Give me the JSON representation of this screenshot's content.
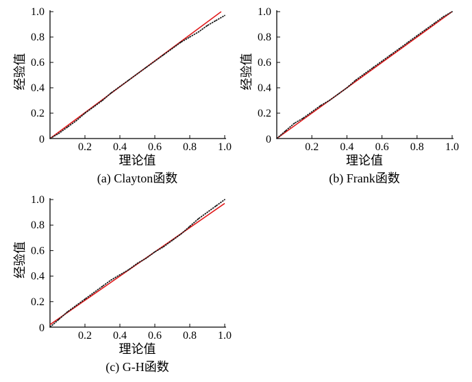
{
  "chart_data": [
    {
      "type": "scatter",
      "caption": "(a) Clayton函数",
      "xlabel": "理论值",
      "ylabel": "经验值",
      "xlim": [
        0,
        1.0
      ],
      "ylim": [
        0,
        1.0
      ],
      "x_tick_labels": [
        "0.2",
        "0.4",
        "0.6",
        "0.8",
        "1.0"
      ],
      "y_tick_labels": [
        "0",
        "0.2",
        "0.4",
        "0.6",
        "0.8",
        "1.0"
      ],
      "reference_line": {
        "color": "#e0191a",
        "x": [
          0,
          0.98
        ],
        "y": [
          0,
          1.0
        ]
      },
      "series": [
        {
          "color": "#1a1a1a",
          "x": [
            0,
            0.05,
            0.1,
            0.15,
            0.2,
            0.25,
            0.3,
            0.35,
            0.4,
            0.45,
            0.5,
            0.55,
            0.6,
            0.65,
            0.7,
            0.75,
            0.8,
            0.85,
            0.9,
            0.95,
            1.0
          ],
          "y": [
            0,
            0.04,
            0.09,
            0.14,
            0.2,
            0.25,
            0.3,
            0.36,
            0.41,
            0.46,
            0.51,
            0.56,
            0.61,
            0.66,
            0.71,
            0.76,
            0.8,
            0.84,
            0.89,
            0.93,
            0.97
          ]
        }
      ]
    },
    {
      "type": "scatter",
      "caption": "(b) Frank函数",
      "xlabel": "理论值",
      "ylabel": "经验值",
      "xlim": [
        0,
        1.0
      ],
      "ylim": [
        0,
        1.0
      ],
      "x_tick_labels": [
        "0.2",
        "0.4",
        "0.6",
        "0.8",
        "1.0"
      ],
      "y_tick_labels": [
        "0",
        "0.2",
        "0.4",
        "0.6",
        "0.8",
        "1.0"
      ],
      "reference_line": {
        "color": "#e0191a",
        "x": [
          0,
          1.0
        ],
        "y": [
          0,
          1.0
        ]
      },
      "series": [
        {
          "color": "#1a1a1a",
          "x": [
            0,
            0.05,
            0.1,
            0.15,
            0.2,
            0.25,
            0.3,
            0.35,
            0.4,
            0.45,
            0.5,
            0.55,
            0.6,
            0.65,
            0.7,
            0.75,
            0.8,
            0.85,
            0.9,
            0.95,
            1.0
          ],
          "y": [
            0,
            0.06,
            0.12,
            0.16,
            0.21,
            0.26,
            0.3,
            0.35,
            0.4,
            0.46,
            0.51,
            0.56,
            0.61,
            0.66,
            0.71,
            0.76,
            0.81,
            0.86,
            0.91,
            0.96,
            1.0
          ]
        }
      ]
    },
    {
      "type": "scatter",
      "caption": "(c) G-H函数",
      "xlabel": "理论值",
      "ylabel": "经验值",
      "xlim": [
        0,
        1.0
      ],
      "ylim": [
        0,
        1.0
      ],
      "x_tick_labels": [
        "0.2",
        "0.4",
        "0.6",
        "0.8",
        "1.0"
      ],
      "y_tick_labels": [
        "0",
        "0.2",
        "0.4",
        "0.6",
        "0.8",
        "1.0"
      ],
      "reference_line": {
        "color": "#e0191a",
        "x": [
          0,
          1.0
        ],
        "y": [
          0.02,
          0.97
        ]
      },
      "series": [
        {
          "color": "#1a1a1a",
          "x": [
            0,
            0.05,
            0.1,
            0.15,
            0.2,
            0.25,
            0.3,
            0.35,
            0.4,
            0.45,
            0.5,
            0.55,
            0.6,
            0.65,
            0.7,
            0.75,
            0.8,
            0.85,
            0.9,
            0.95,
            1.0
          ],
          "y": [
            0,
            0.06,
            0.12,
            0.17,
            0.22,
            0.27,
            0.32,
            0.37,
            0.41,
            0.45,
            0.5,
            0.54,
            0.59,
            0.63,
            0.68,
            0.73,
            0.79,
            0.85,
            0.9,
            0.95,
            1.0
          ]
        }
      ]
    }
  ]
}
